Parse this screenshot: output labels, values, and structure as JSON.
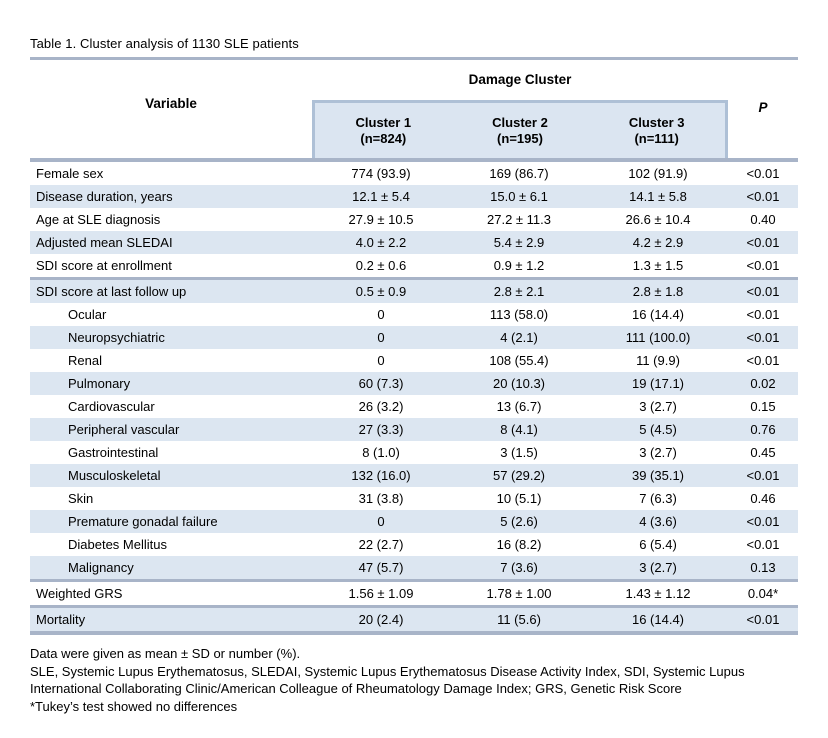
{
  "title": "Table 1. Cluster analysis of 1130 SLE patients",
  "colors": {
    "rule": "#a8b4c8",
    "row_shade": "#dce6f1",
    "cluster_box_fill": "#dbe5f1",
    "cluster_box_border": "#aec0d6",
    "text": "#000000"
  },
  "table": {
    "group_header": "Damage Cluster",
    "variable_header": "Variable",
    "p_header": "P",
    "cluster_headers": [
      {
        "name": "Cluster 1",
        "n": "(n=824)"
      },
      {
        "name": "Cluster 2",
        "n": "(n=195)"
      },
      {
        "name": "Cluster 3",
        "n": "(n=111)"
      }
    ],
    "rows": [
      {
        "variable": "Female sex",
        "indent": false,
        "sep_above": false,
        "c1": "774 (93.9)",
        "c2": "169 (86.7)",
        "c3": "102 (91.9)",
        "p": "<0.01"
      },
      {
        "variable": "Disease duration, years",
        "indent": false,
        "sep_above": false,
        "c1": "12.1 ± 5.4",
        "c2": "15.0 ± 6.1",
        "c3": "14.1 ± 5.8",
        "p": "<0.01"
      },
      {
        "variable": "Age at SLE diagnosis",
        "indent": false,
        "sep_above": false,
        "c1": "27.9 ± 10.5",
        "c2": "27.2 ± 11.3",
        "c3": "26.6 ± 10.4",
        "p": "0.40"
      },
      {
        "variable": "Adjusted mean SLEDAI",
        "indent": false,
        "sep_above": false,
        "c1": "4.0 ± 2.2",
        "c2": "5.4 ± 2.9",
        "c3": "4.2 ± 2.9",
        "p": "<0.01"
      },
      {
        "variable": "SDI score at enrollment",
        "indent": false,
        "sep_above": false,
        "c1": "0.2 ± 0.6",
        "c2": "0.9 ± 1.2",
        "c3": "1.3 ± 1.5",
        "p": "<0.01"
      },
      {
        "variable": "SDI score at last follow up",
        "indent": false,
        "sep_above": true,
        "c1": "0.5 ± 0.9",
        "c2": "2.8 ± 2.1",
        "c3": "2.8 ± 1.8",
        "p": "<0.01"
      },
      {
        "variable": "Ocular",
        "indent": true,
        "sep_above": false,
        "c1": "0",
        "c2": "113 (58.0)",
        "c3": "16 (14.4)",
        "p": "<0.01"
      },
      {
        "variable": "Neuropsychiatric",
        "indent": true,
        "sep_above": false,
        "c1": "0",
        "c2": "4 (2.1)",
        "c3": "111 (100.0)",
        "p": "<0.01"
      },
      {
        "variable": "Renal",
        "indent": true,
        "sep_above": false,
        "c1": "0",
        "c2": "108 (55.4)",
        "c3": "11 (9.9)",
        "p": "<0.01"
      },
      {
        "variable": "Pulmonary",
        "indent": true,
        "sep_above": false,
        "c1": "60 (7.3)",
        "c2": "20 (10.3)",
        "c3": "19 (17.1)",
        "p": "0.02"
      },
      {
        "variable": "Cardiovascular",
        "indent": true,
        "sep_above": false,
        "c1": "26 (3.2)",
        "c2": "13 (6.7)",
        "c3": "3 (2.7)",
        "p": "0.15"
      },
      {
        "variable": "Peripheral vascular",
        "indent": true,
        "sep_above": false,
        "c1": "27 (3.3)",
        "c2": "8 (4.1)",
        "c3": "5 (4.5)",
        "p": "0.76"
      },
      {
        "variable": "Gastrointestinal",
        "indent": true,
        "sep_above": false,
        "c1": "8 (1.0)",
        "c2": "3 (1.5)",
        "c3": "3 (2.7)",
        "p": "0.45"
      },
      {
        "variable": "Musculoskeletal",
        "indent": true,
        "sep_above": false,
        "c1": "132 (16.0)",
        "c2": "57 (29.2)",
        "c3": "39 (35.1)",
        "p": "<0.01"
      },
      {
        "variable": "Skin",
        "indent": true,
        "sep_above": false,
        "c1": "31 (3.8)",
        "c2": "10 (5.1)",
        "c3": "7 (6.3)",
        "p": "0.46"
      },
      {
        "variable": "Premature gonadal failure",
        "indent": true,
        "sep_above": false,
        "c1": "0",
        "c2": "5 (2.6)",
        "c3": "4 (3.6)",
        "p": "<0.01"
      },
      {
        "variable": "Diabetes Mellitus",
        "indent": true,
        "sep_above": false,
        "c1": "22 (2.7)",
        "c2": "16 (8.2)",
        "c3": "6 (5.4)",
        "p": "<0.01"
      },
      {
        "variable": "Malignancy",
        "indent": true,
        "sep_above": false,
        "c1": "47 (5.7)",
        "c2": "7 (3.6)",
        "c3": "3 (2.7)",
        "p": "0.13"
      },
      {
        "variable": "Weighted GRS",
        "indent": false,
        "sep_above": true,
        "c1": "1.56 ± 1.09",
        "c2": "1.78  ± 1.00",
        "c3": "1.43  ± 1.12",
        "p": "0.04*"
      },
      {
        "variable": "Mortality",
        "indent": false,
        "sep_above": true,
        "c1": "20 (2.4)",
        "c2": "11 (5.6)",
        "c3": "16 (14.4)",
        "p": "<0.01"
      }
    ]
  },
  "footnotes": [
    "Data were given as mean ± SD or number (%).",
    "SLE, Systemic Lupus Erythematosus, SLEDAI, Systemic Lupus Erythematosus Disease Activity Index, SDI, Systemic Lupus International Collaborating Clinic/American Colleague of Rheumatology Damage Index;  GRS, Genetic Risk Score",
    "*Tukey’s test showed no differences"
  ]
}
